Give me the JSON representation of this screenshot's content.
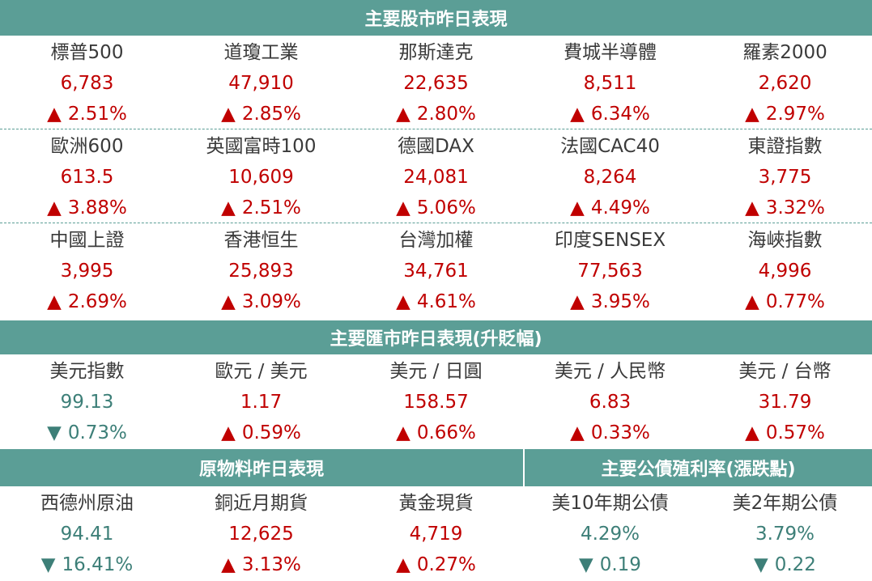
{
  "headers": {
    "stocks": "主要股市昨日表現",
    "fx": "主要匯市昨日表現(升貶幅)",
    "commodities": "原物料昨日表現",
    "bonds": "主要公債殖利率(漲跌點)"
  },
  "stocks": [
    [
      {
        "name": "標普500",
        "value": "6,783",
        "dir": "up",
        "arrow": "▲",
        "change": "2.51%"
      },
      {
        "name": "道瓊工業",
        "value": "47,910",
        "dir": "up",
        "arrow": "▲",
        "change": "2.85%"
      },
      {
        "name": "那斯達克",
        "value": "22,635",
        "dir": "up",
        "arrow": "▲",
        "change": "2.80%"
      },
      {
        "name": "費城半導體",
        "value": "8,511",
        "dir": "up",
        "arrow": "▲",
        "change": "6.34%"
      },
      {
        "name": "羅素2000",
        "value": "2,620",
        "dir": "up",
        "arrow": "▲",
        "change": "2.97%"
      }
    ],
    [
      {
        "name": "歐洲600",
        "value": "613.5",
        "dir": "up",
        "arrow": "▲",
        "change": "3.88%"
      },
      {
        "name": "英國富時100",
        "value": "10,609",
        "dir": "up",
        "arrow": "▲",
        "change": "2.51%"
      },
      {
        "name": "德國DAX",
        "value": "24,081",
        "dir": "up",
        "arrow": "▲",
        "change": "5.06%"
      },
      {
        "name": "法國CAC40",
        "value": "8,264",
        "dir": "up",
        "arrow": "▲",
        "change": "4.49%"
      },
      {
        "name": "東證指數",
        "value": "3,775",
        "dir": "up",
        "arrow": "▲",
        "change": "3.32%"
      }
    ],
    [
      {
        "name": "中國上證",
        "value": "3,995",
        "dir": "up",
        "arrow": "▲",
        "change": "2.69%"
      },
      {
        "name": "香港恒生",
        "value": "25,893",
        "dir": "up",
        "arrow": "▲",
        "change": "3.09%"
      },
      {
        "name": "台灣加權",
        "value": "34,761",
        "dir": "up",
        "arrow": "▲",
        "change": "4.61%"
      },
      {
        "name": "印度SENSEX",
        "value": "77,563",
        "dir": "up",
        "arrow": "▲",
        "change": "3.95%"
      },
      {
        "name": "海峽指數",
        "value": "4,996",
        "dir": "up",
        "arrow": "▲",
        "change": "0.77%"
      }
    ]
  ],
  "fx": [
    {
      "name": "美元指數",
      "value": "99.13",
      "dir": "down",
      "arrow": "▼",
      "change": "0.73%"
    },
    {
      "name": "歐元 / 美元",
      "value": "1.17",
      "dir": "up",
      "arrow": "▲",
      "change": "0.59%"
    },
    {
      "name": "美元 / 日圓",
      "value": "158.57",
      "dir": "up",
      "arrow": "▲",
      "change": "0.66%"
    },
    {
      "name": "美元 / 人民幣",
      "value": "6.83",
      "dir": "up",
      "arrow": "▲",
      "change": "0.33%"
    },
    {
      "name": "美元 / 台幣",
      "value": "31.79",
      "dir": "up",
      "arrow": "▲",
      "change": "0.57%"
    }
  ],
  "commodities": [
    {
      "name": "西德州原油",
      "value": "94.41",
      "dir": "down",
      "arrow": "▼",
      "change": "16.41%"
    },
    {
      "name": "銅近月期貨",
      "value": "12,625",
      "dir": "up",
      "arrow": "▲",
      "change": "3.13%"
    },
    {
      "name": "黃金現貨",
      "value": "4,719",
      "dir": "up",
      "arrow": "▲",
      "change": "0.27%"
    }
  ],
  "bonds": [
    {
      "name": "美10年期公債",
      "value": "4.29%",
      "dir": "down",
      "arrow": "▼",
      "change": "0.19"
    },
    {
      "name": "美2年期公債",
      "value": "3.79%",
      "dir": "down",
      "arrow": "▼",
      "change": "0.22"
    }
  ],
  "colors": {
    "up": "#c00000",
    "down": "#3d7f78",
    "header_bg": "#5b9e96"
  }
}
